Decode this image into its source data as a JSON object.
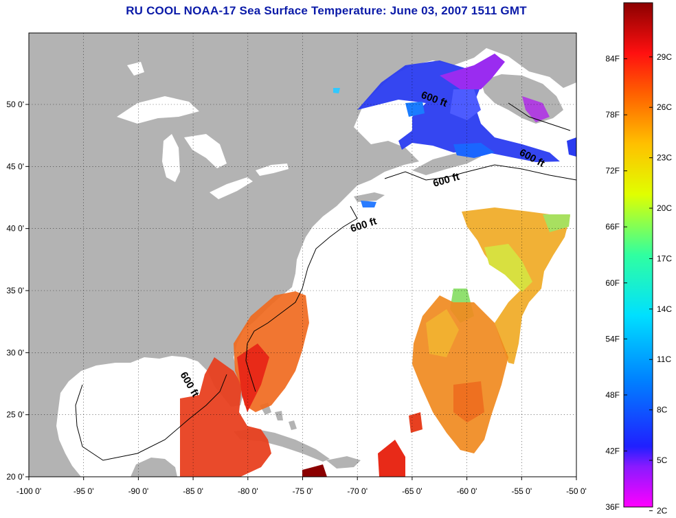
{
  "title": "RU COOL  NOAA-17  Sea Surface Temperature:  June 03, 2007 1511 GMT",
  "axes": {
    "lon_ticks": [
      "-100 0'",
      "-95 0'",
      "-90 0'",
      "-85 0'",
      "-80 0'",
      "-75 0'",
      "-70 0'",
      "-65 0'",
      "-60 0'",
      "-55 0'",
      "-50 0'"
    ],
    "lat_ticks": [
      "50 0'",
      "45 0'",
      "40 0'",
      "35 0'",
      "30 0'",
      "25 0'",
      "20 0'"
    ]
  },
  "contours": [
    "600 ft",
    "600 ft",
    "600 ft",
    "600 ft",
    "600 ft"
  ],
  "colorbar": {
    "fahrenheit": [
      "84F",
      "78F",
      "72F",
      "66F",
      "60F",
      "54F",
      "48F",
      "42F",
      "36F"
    ],
    "celsius": [
      "29C",
      "26C",
      "23C",
      "20C",
      "17C",
      "14C",
      "11C",
      "8C",
      "5C",
      "2C"
    ]
  },
  "colors": {
    "land": "#b3b3b3",
    "ocean_nodata": "#ffffff",
    "title": "#0a1aa8"
  }
}
